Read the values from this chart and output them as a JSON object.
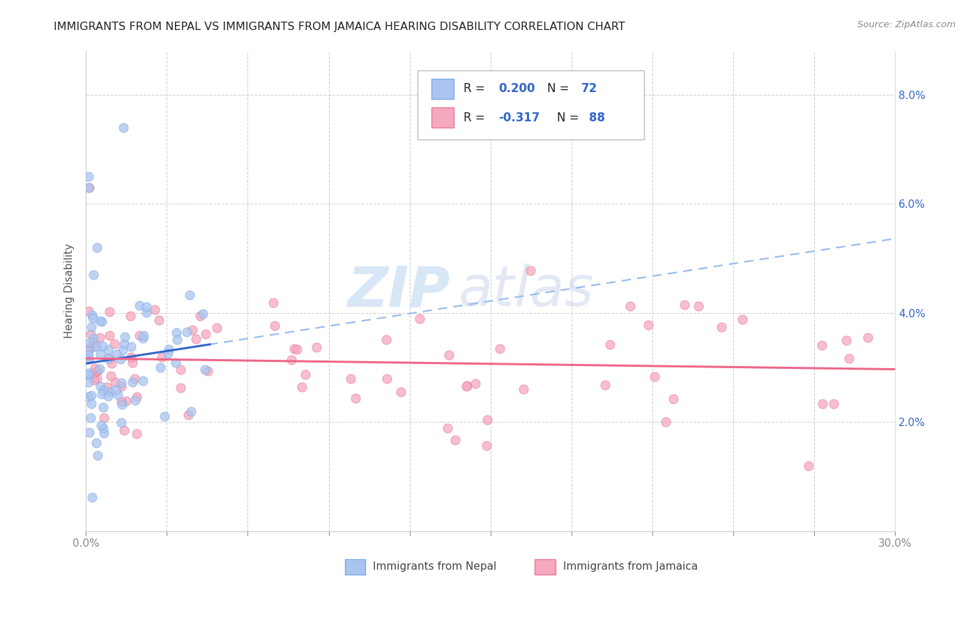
{
  "title": "IMMIGRANTS FROM NEPAL VS IMMIGRANTS FROM JAMAICA HEARING DISABILITY CORRELATION CHART",
  "source": "Source: ZipAtlas.com",
  "ylabel": "Hearing Disability",
  "xlim": [
    0.0,
    0.3
  ],
  "ylim": [
    0.0,
    0.088
  ],
  "xticks": [
    0.0,
    0.03,
    0.06,
    0.09,
    0.12,
    0.15,
    0.18,
    0.21,
    0.24,
    0.27,
    0.3
  ],
  "xticklabels_show": [
    "0.0%",
    "30.0%"
  ],
  "yticks": [
    0.0,
    0.02,
    0.04,
    0.06,
    0.08
  ],
  "yticklabels": [
    "",
    "2.0%",
    "4.0%",
    "6.0%",
    "8.0%"
  ],
  "nepal_color": "#aac4f0",
  "nepal_edge_color": "#7aaae8",
  "jamaica_color": "#f5a8be",
  "jamaica_edge_color": "#e87898",
  "nepal_R": 0.2,
  "nepal_N": 72,
  "jamaica_R": -0.317,
  "jamaica_N": 88,
  "legend_label_nepal": "Immigrants from Nepal",
  "legend_label_jamaica": "Immigrants from Jamaica",
  "watermark_zip": "ZIP",
  "watermark_atlas": "atlas",
  "nepal_line_color": "#3366cc",
  "nepal_dash_color": "#99bbee",
  "jamaica_line_color": "#ee6688",
  "R_text_color": "#333333",
  "N_value_color": "#3366cc",
  "grid_color": "#cccccc",
  "right_axis_color": "#3366cc"
}
